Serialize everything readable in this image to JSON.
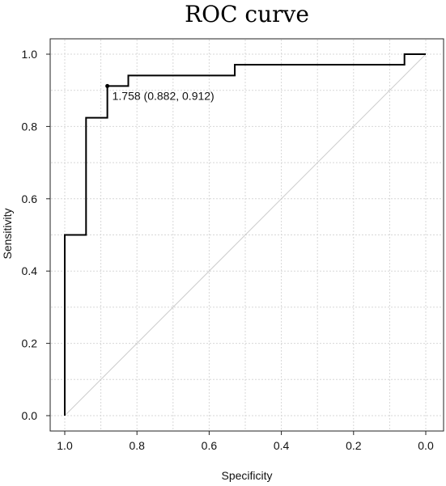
{
  "chart_data": {
    "type": "line",
    "title": "ROC curve",
    "xlabel": "Specificity",
    "ylabel": "Sensitivity",
    "xlim": [
      1.0,
      0.0
    ],
    "ylim": [
      0.0,
      1.0
    ],
    "x_ticks": [
      1.0,
      0.8,
      0.6,
      0.4,
      0.2,
      0.0
    ],
    "y_ticks": [
      0.0,
      0.2,
      0.4,
      0.6,
      0.8,
      1.0
    ],
    "x_tick_labels": [
      "1.0",
      "0.8",
      "0.6",
      "0.4",
      "0.2",
      "0.0"
    ],
    "y_tick_labels": [
      "0.0",
      "0.2",
      "0.4",
      "0.6",
      "0.8",
      "1.0"
    ],
    "grid": true,
    "series": [
      {
        "type": "step",
        "color": "#000000",
        "points": [
          [
            1.0,
            0.0
          ],
          [
            1.0,
            0.5
          ],
          [
            0.941,
            0.5
          ],
          [
            0.941,
            0.824
          ],
          [
            0.882,
            0.824
          ],
          [
            0.882,
            0.912
          ],
          [
            0.824,
            0.912
          ],
          [
            0.824,
            0.941
          ],
          [
            0.529,
            0.941
          ],
          [
            0.529,
            0.971
          ],
          [
            0.059,
            0.971
          ],
          [
            0.059,
            1.0
          ],
          [
            0.0,
            1.0
          ]
        ]
      }
    ],
    "reference_line": {
      "from": [
        1.0,
        0.0
      ],
      "to": [
        0.0,
        1.0
      ],
      "color": "#cccccc"
    },
    "annotations": [
      {
        "point": [
          0.882,
          0.912
        ],
        "text": "1.758 (0.882, 0.912)"
      }
    ]
  }
}
